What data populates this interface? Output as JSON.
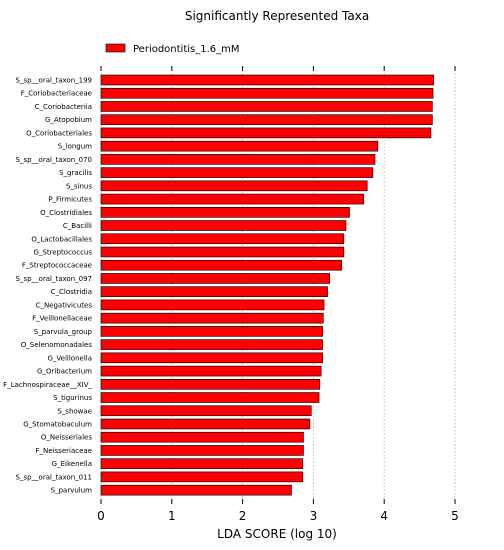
{
  "chart_data": {
    "type": "bar",
    "orientation": "horizontal",
    "title": "Significantly Represented Taxa",
    "xlabel": "LDA SCORE (log 10)",
    "ylabel": "",
    "xlim": [
      0,
      5
    ],
    "xticks": [
      0,
      1,
      2,
      3,
      4,
      5
    ],
    "grid": "vertical dotted",
    "legend_position": "top-left",
    "bar_color": "#ff0000",
    "series": [
      {
        "name": "Periodontitis_1.6_mM",
        "color": "#ff0000"
      }
    ],
    "categories": [
      "S_sp__oral_taxon_199",
      "F_Coriobacteriaceae",
      "C_Coriobacteriia",
      "G_Atopobium",
      "O_Coriobacteriales",
      "S_longum",
      "S_sp__oral_taxon_070",
      "S_gracilis",
      "S_sinus",
      "P_Firmicutes",
      "O_Clostridiales",
      "C_Bacilli",
      "O_Lactobacillales",
      "G_Streptococcus",
      "F_Streptococcaceae",
      "S_sp__oral_taxon_097",
      "C_Clostridia",
      "C_Negativicutes",
      "F_Veillonellaceae",
      "S_parvula_group",
      "O_Selenomonadales",
      "G_Veillonella",
      "G_Oribacterium",
      "F_Lachnospiraceae__XIV_",
      "S_tigurinus",
      "S_showae",
      "G_Stomatobaculum",
      "O_Neisseriales",
      "F_Neisseriaceae",
      "G_Eikenella",
      "S_sp__oral_taxon_011",
      "S_parvulum"
    ],
    "values": [
      4.7,
      4.69,
      4.68,
      4.68,
      4.66,
      3.91,
      3.87,
      3.84,
      3.76,
      3.71,
      3.51,
      3.46,
      3.43,
      3.43,
      3.4,
      3.23,
      3.2,
      3.15,
      3.14,
      3.13,
      3.13,
      3.13,
      3.11,
      3.09,
      3.08,
      2.97,
      2.95,
      2.86,
      2.86,
      2.85,
      2.85,
      2.69
    ]
  }
}
